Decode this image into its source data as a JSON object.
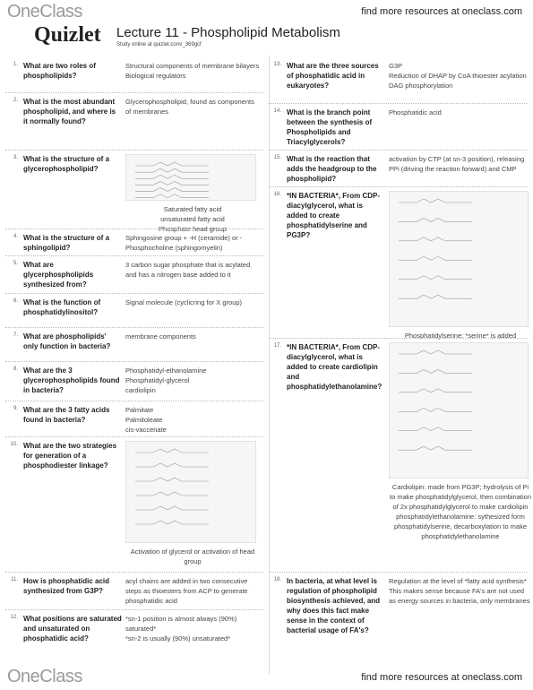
{
  "header": {
    "logo": "OneClass",
    "link": "find more resources at oneclass.com",
    "brand": "Quizlet",
    "title": "Lecture 11 - Phospholipid Metabolism",
    "study": "Study online at quizlet.com/_369gcf"
  },
  "cards": {
    "left": [
      {
        "number": "1.",
        "question": "What are two roles of phospholipids?",
        "answer": [
          "Structural components of membrane bilayers",
          "Biological regulators"
        ]
      },
      {
        "number": "2.",
        "question": "What is the most abundant phospholipid, and where is it normally found?",
        "answer": [
          "Glycerophospholipid, found as components of membranes"
        ]
      },
      {
        "number": "3.",
        "question": "What is the structure of a glycerophospholipid?",
        "answer": [],
        "caption": [
          "Saturated fatty acid",
          "unsaturated fatty acid",
          "Phosphate head group"
        ]
      },
      {
        "number": "4.",
        "question": "What is the structure of a sphingolipid?",
        "answer": [
          "Sphingosine group + -H (ceramide) or -Phosphocholine (sphingomyelin)"
        ]
      },
      {
        "number": "5.",
        "question": "What are glycerphospholipids synthesized from?",
        "answer": [
          "3 carbon sugar phosphate that is acylated and has a nitrogen base added to it"
        ]
      },
      {
        "number": "6.",
        "question": "What is the function of phosphatidylinositol?",
        "answer": [
          "Signal molecule (cyclicring for X group)"
        ]
      },
      {
        "number": "7.",
        "question": "What are phospholipids' only function in bacteria?",
        "answer": [
          "membrane components"
        ]
      },
      {
        "number": "8.",
        "question": "What are the 3 glycerophospholipids found in bacteria?",
        "answer": [
          "Phosphatidyl-ethanolamine",
          "Phosphatidyl-glycerol",
          "cardiolipin"
        ]
      },
      {
        "number": "9.",
        "question": "What are the 3 fatty acids found in bacteria?",
        "answer": [
          "Palmitate",
          "Palmitoleate",
          "cis-vaccenate"
        ]
      },
      {
        "number": "10.",
        "question": "What are the two strategies for generation of a phosphodiester linkage?",
        "answer": [],
        "caption": [
          "Activation of glycerol or activation of head group"
        ]
      },
      {
        "number": "11.",
        "question": "How is phosphatidic acid synthesized from G3P?",
        "answer": [
          "acyl chains are added in two consecutive steps as thioesters from ACP to generate phosphatidic acid"
        ]
      },
      {
        "number": "12.",
        "question": "What positions are saturated and unsaturated on phosphatidic acid?",
        "answer": [
          "*sn-1 position is almost always (90%) saturated*",
          "*sn-2 is usually (90%) unsaturated*"
        ]
      }
    ],
    "right": [
      {
        "number": "13.",
        "question": "What are the three sources of phosphatidic acid in eukaryotes?",
        "answer": [
          "G3P",
          "Reduction of DHAP by CoA thioester acylation",
          "DAG phosphorylation"
        ]
      },
      {
        "number": "14.",
        "question": "What is the branch point between the synthesis of Phospholipids and Triacylglycerols?",
        "answer": [
          "Phosphatidic acid"
        ]
      },
      {
        "number": "15.",
        "question": "What is the reaction that adds the headgroup to the phospholipid?",
        "answer": [
          "activation by CTP (at sn-3 position), releasing PPi (driving the reaction forward) and CMP"
        ]
      },
      {
        "number": "16.",
        "question": "*IN BACTERIA*, From CDP-diacylglycerol, what is added to create phosphatidylserine and PG3P?",
        "answer": [],
        "caption": [
          "Phosphatidylserine: *serine* is added",
          "PG3P: *G3P* is added"
        ]
      },
      {
        "number": "17.",
        "question": "*IN BACTERIA*, From CDP-diacylglycerol, what is added to create cardiolipin and phosphatidylethanolamine?",
        "answer": [],
        "caption": [
          "Cardiolipin: made from PG3P; hydrolysis of Pi to make phosphatidylglycerol, then combination of 2x phosphatidylglycerol to make cardiolipin",
          "phosphatidylethanolamine: sythesized form phosphatidylserine, decarboxylation to make phosphatidylethanolamine"
        ]
      },
      {
        "number": "18.",
        "question": "In bacteria, at what level is regulation of phospholipid biosynthesis achieved, and why does this fact make sense in the context of bacterial usage of FA's?",
        "answer": [
          "Regulation at the level of *fatty acid synthesis*",
          "This makes sense because FA's are not used as energy sources in bacteria, only membranes"
        ]
      }
    ]
  },
  "footer": {
    "logo": "OneClass",
    "link": "find more resources at oneclass.com"
  }
}
